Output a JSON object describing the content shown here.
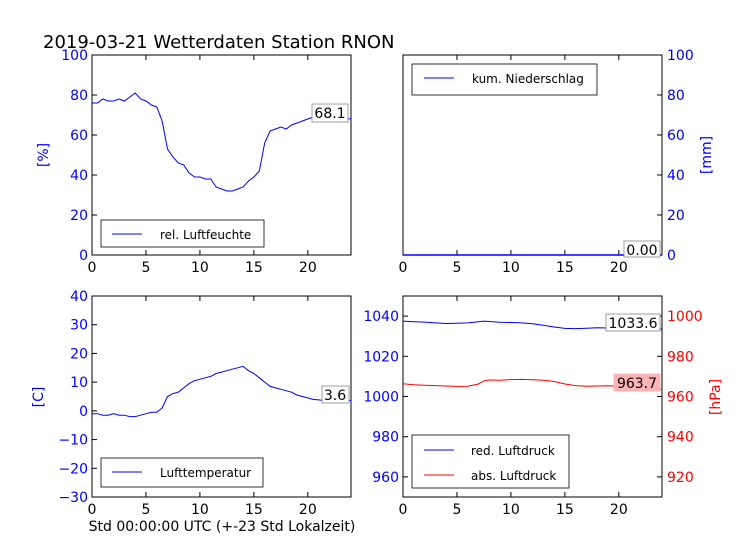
{
  "title": "2019-03-21 Wetterdaten Station RNON",
  "xlabel": "Std 00:00:00 UTC (+-23 Std Lokalzeit)",
  "colors": {
    "blue": "#0000ff",
    "red": "#ff0000",
    "text": "#000000"
  },
  "chart_data": [
    {
      "type": "line",
      "id": "humidity",
      "ylabel": "[%]",
      "xlim": [
        0,
        24
      ],
      "ylim": [
        0,
        100
      ],
      "xticks": [
        "0",
        "5",
        "10",
        "15",
        "20"
      ],
      "yticks": [
        "0",
        "20",
        "40",
        "60",
        "80",
        "100"
      ],
      "legend": {
        "placement": "lower-left"
      },
      "series": [
        {
          "name": "rel. Luftfeuchte",
          "color": "#0000ff",
          "x": [
            0,
            0.5,
            1,
            1.5,
            2,
            2.5,
            3,
            3.5,
            4,
            4.5,
            5,
            5.5,
            6,
            6.5,
            7,
            7.5,
            8,
            8.5,
            9,
            9.5,
            10,
            10.5,
            11,
            11.5,
            12,
            12.5,
            13,
            13.5,
            14,
            14.5,
            15,
            15.5,
            16,
            16.5,
            17,
            17.5,
            18,
            18.5,
            19,
            19.5,
            20,
            20.5,
            21,
            21.5,
            22,
            22.5,
            23,
            23.5,
            24
          ],
          "y": [
            76,
            76,
            78,
            77,
            77,
            78,
            77,
            79,
            81,
            78,
            77,
            75,
            74,
            67,
            53,
            49,
            46,
            45,
            41,
            39,
            39,
            38,
            38,
            34,
            33,
            32,
            32,
            33,
            34,
            37,
            39,
            42,
            56,
            62,
            63,
            64,
            63,
            65,
            66,
            67,
            68,
            69,
            69,
            69,
            69,
            69,
            68,
            68,
            68.1
          ]
        }
      ],
      "value_label": "68.1"
    },
    {
      "type": "line",
      "id": "precipitation",
      "ylabel": "[mm]",
      "xlim": [
        0,
        24
      ],
      "ylim": [
        0,
        100
      ],
      "xticks": [
        "0",
        "5",
        "10",
        "15",
        "20"
      ],
      "yticks": [
        "0",
        "20",
        "40",
        "60",
        "80",
        "100"
      ],
      "legend": {
        "placement": "upper-left"
      },
      "series": [
        {
          "name": "kum. Niederschlag",
          "color": "#0000ff",
          "x": [
            0,
            24
          ],
          "y": [
            0,
            0
          ]
        }
      ],
      "value_label": "0.00"
    },
    {
      "type": "line",
      "id": "temperature",
      "ylabel": "[C]",
      "xlim": [
        0,
        24
      ],
      "ylim": [
        -30,
        40
      ],
      "xticks": [
        "0",
        "5",
        "10",
        "15",
        "20"
      ],
      "yticks": [
        "−30",
        "−20",
        "−10",
        "0",
        "10",
        "20",
        "30",
        "40"
      ],
      "legend": {
        "placement": "lower-left"
      },
      "series": [
        {
          "name": "Lufttemperatur",
          "color": "#0000ff",
          "x": [
            0,
            0.5,
            1,
            1.5,
            2,
            2.5,
            3,
            3.5,
            4,
            4.5,
            5,
            5.5,
            6,
            6.5,
            7,
            7.5,
            8,
            8.5,
            9,
            9.5,
            10,
            10.5,
            11,
            11.5,
            12,
            12.5,
            13,
            13.5,
            14,
            14.5,
            15,
            15.5,
            16,
            16.5,
            17,
            17.5,
            18,
            18.5,
            19,
            19.5,
            20,
            20.5,
            21,
            21.5,
            22,
            22.5,
            23,
            23.5,
            24
          ],
          "y": [
            -1,
            -1,
            -1.5,
            -1.5,
            -1,
            -1.5,
            -1.5,
            -2,
            -2,
            -1.5,
            -1,
            -0.5,
            -0.5,
            1,
            5,
            6,
            6.5,
            8,
            9.5,
            10.5,
            11,
            11.5,
            12,
            13,
            13.5,
            14,
            14.5,
            15,
            15.5,
            14,
            13,
            11.5,
            10,
            8.5,
            8,
            7.5,
            7,
            6.5,
            5.5,
            5,
            4.5,
            4,
            3.8,
            3.6,
            3.6,
            3.6,
            3.6,
            3.6,
            3.6
          ]
        }
      ],
      "value_label": "3.6"
    },
    {
      "type": "line",
      "id": "pressure",
      "ylabel": "[hPa]",
      "xlim": [
        0,
        24
      ],
      "ylim_left": [
        950,
        1050
      ],
      "ylim_right": [
        910,
        1010
      ],
      "xticks": [
        "0",
        "5",
        "10",
        "15",
        "20"
      ],
      "yticks_left": [
        "960",
        "980",
        "1000",
        "1020",
        "1040"
      ],
      "yticks_right": [
        "920",
        "940",
        "960",
        "980",
        "1000"
      ],
      "legend": {
        "placement": "lower-left"
      },
      "series": [
        {
          "name": "red. Luftdruck",
          "color": "#0000ff",
          "axis": "left",
          "x": [
            0,
            1,
            2,
            3,
            4,
            5,
            6,
            7,
            7.5,
            8,
            9,
            10,
            11,
            12,
            13,
            14,
            15,
            16,
            17,
            18,
            19,
            20,
            21,
            22,
            23,
            24
          ],
          "y": [
            1037.5,
            1037.2,
            1037,
            1036.6,
            1036.3,
            1036.4,
            1036.6,
            1037.2,
            1037.5,
            1037.3,
            1036.9,
            1036.8,
            1036.6,
            1036.2,
            1035.4,
            1034.6,
            1033.9,
            1033.8,
            1034,
            1034.2,
            1034.1,
            1034,
            1033.8,
            1033.7,
            1033.6,
            1033.6
          ]
        },
        {
          "name": "abs. Luftdruck",
          "color": "#ff0000",
          "axis": "right",
          "x": [
            0,
            1,
            2,
            3,
            4,
            5,
            6,
            7,
            7.5,
            8,
            9,
            10,
            11,
            12,
            13,
            14,
            15,
            16,
            17,
            18,
            19,
            20,
            21,
            22,
            23,
            24
          ],
          "y": [
            966.3,
            965.8,
            965.6,
            965.4,
            965.2,
            965,
            965.1,
            966.2,
            967.8,
            968.2,
            968.1,
            968.4,
            968.5,
            968.3,
            968.1,
            967.5,
            966.2,
            965.4,
            965.1,
            965.2,
            965.3,
            965.1,
            964.6,
            964.2,
            963.9,
            963.7
          ]
        }
      ],
      "value_labels": [
        "1033.6",
        "963.7"
      ]
    }
  ]
}
